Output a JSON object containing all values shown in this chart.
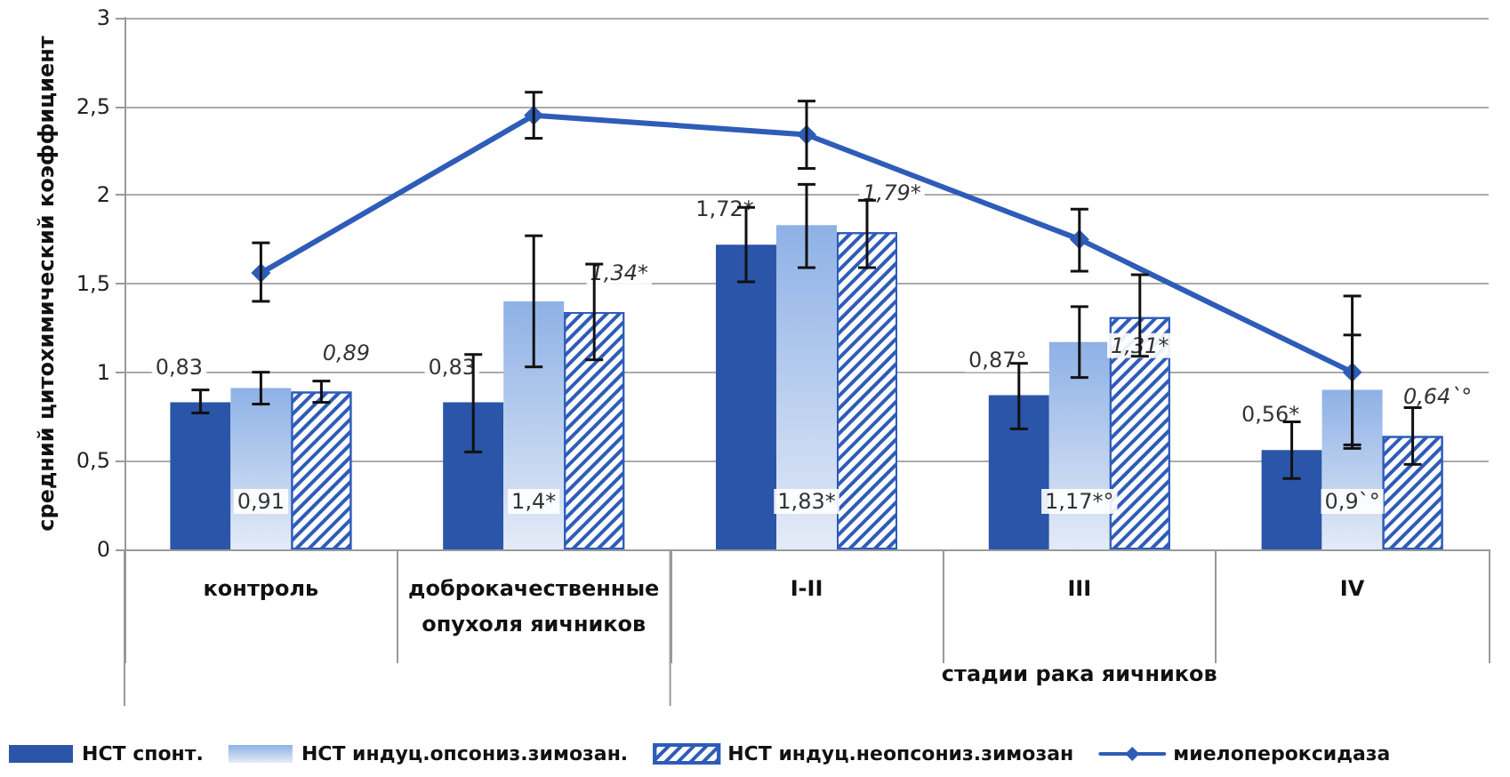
{
  "chart_data": {
    "type": "bar",
    "ylabel": "средний цитохимический коэффициент",
    "categories": [
      "контроль",
      "доброкачественные\nопухоля яичников",
      "I-II",
      "III",
      "IV"
    ],
    "annotations": [
      "стадии рака яичников"
    ],
    "ylim": [
      0,
      3
    ],
    "yticks": [
      0,
      {
        "value": 0.5,
        "label": "0,5"
      },
      1,
      {
        "value": 1.5,
        "label": "1,5"
      },
      2,
      {
        "value": 2.5,
        "label": "2,5"
      },
      3
    ],
    "grid": "y",
    "legend": "bottom",
    "marker": "diamond",
    "series": [
      {
        "name": "НСТ спонт.",
        "color": "#2a55a8",
        "values": [
          0.83,
          0.83,
          1.72,
          0.87,
          0.56
        ],
        "value_labels": [
          "0,83",
          "0,83",
          "1,72*",
          "0,87°",
          "0,56*"
        ],
        "errors": [
          [
            0.77,
            0.9
          ],
          [
            0.55,
            1.1
          ],
          [
            1.51,
            1.93
          ],
          [
            0.68,
            1.05
          ],
          [
            0.4,
            0.72
          ]
        ]
      },
      {
        "name": "НСТ индуц.опсониз.зимозан.",
        "color": "#8eb1e6",
        "values": [
          0.91,
          1.4,
          1.83,
          1.17,
          0.9
        ],
        "value_labels": [
          "0,91",
          "1,4*",
          "1,83*",
          "1,17*°",
          "0,9`°"
        ],
        "errors": [
          [
            0.82,
            1.0
          ],
          [
            1.03,
            1.77
          ],
          [
            1.59,
            2.06
          ],
          [
            0.97,
            1.37
          ],
          [
            0.59,
            1.21
          ]
        ]
      },
      {
        "name": "НСТ индуц.неопсониз.зимозан",
        "color": "#2e5cb8",
        "values": [
          0.89,
          1.34,
          1.79,
          1.31,
          0.64
        ],
        "value_labels": [
          "0,89",
          "1,34*",
          "1,79*",
          "1,31*",
          "0,64`°"
        ],
        "errors": [
          [
            0.83,
            0.95
          ],
          [
            1.07,
            1.61
          ],
          [
            1.59,
            1.97
          ],
          [
            1.09,
            1.55
          ],
          [
            0.48,
            0.8
          ]
        ]
      },
      {
        "name": "миелопероксидаза",
        "type": "line",
        "color": "#2e5cb8",
        "values": [
          1.56,
          2.45,
          2.34,
          1.75,
          1.0
        ],
        "errors": [
          [
            1.4,
            1.73
          ],
          [
            2.32,
            2.58
          ],
          [
            2.15,
            2.53
          ],
          [
            1.57,
            1.92
          ],
          [
            0.57,
            1.43
          ]
        ]
      }
    ]
  }
}
